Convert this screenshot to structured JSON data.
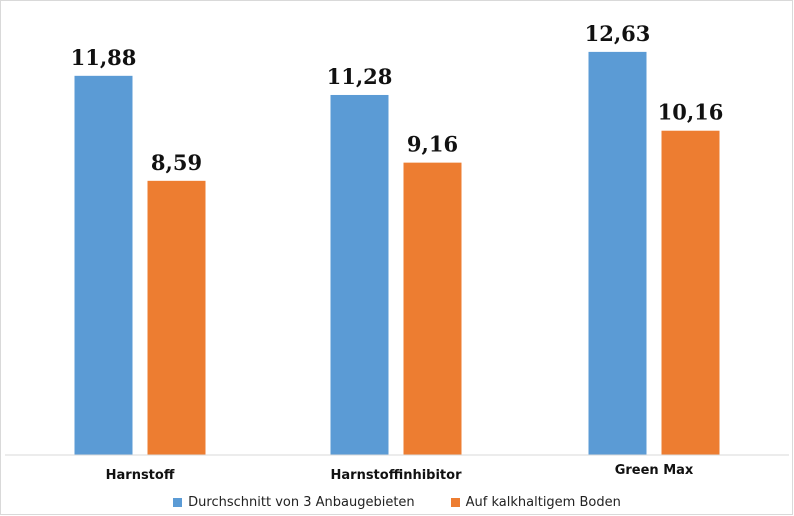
{
  "chart_data": {
    "type": "bar",
    "title": "",
    "xlabel": "",
    "ylabel": "",
    "categories": [
      "Harnstoff",
      "Harnstoffinhibitor",
      "Green Max"
    ],
    "series": [
      {
        "name": "Durchschnitt von 3 Anbaugebieten",
        "values": [
          11.88,
          11.28,
          12.63
        ],
        "labels": [
          "11,88",
          "11,28",
          "12,63"
        ],
        "color": "#5b9bd5"
      },
      {
        "name": "Auf kalkhaltigem Boden",
        "values": [
          8.59,
          9.16,
          10.16
        ],
        "labels": [
          "8,59",
          "9,16",
          "10,16"
        ],
        "color": "#ed7d31"
      }
    ],
    "ylim": [
      0,
      13.5
    ],
    "grid": false,
    "legend_position": "bottom"
  }
}
